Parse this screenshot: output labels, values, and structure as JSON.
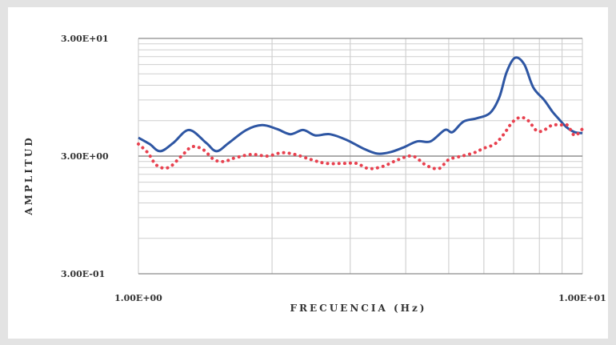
{
  "chart_data": {
    "type": "line",
    "title": "",
    "xlabel": "FRECUENCIA (Hz)",
    "ylabel": "AMPLITUD",
    "x_scale": "log",
    "y_scale": "log",
    "xlim": [
      1,
      10
    ],
    "ylim": [
      0.3,
      30
    ],
    "x_tick_labels": [
      {
        "value": 1,
        "label": "1.00E+00"
      },
      {
        "value": 10,
        "label": "1.00E+01"
      }
    ],
    "y_tick_labels": [
      {
        "value": 30,
        "label": "3.00E+01"
      },
      {
        "value": 3,
        "label": "3.00E+00"
      },
      {
        "value": 0.3,
        "label": "3.00E-01"
      }
    ],
    "grid": true,
    "legend": false,
    "series": [
      {
        "color": "#2e56a3",
        "style": "solid",
        "points": [
          [
            1.0,
            4.3
          ],
          [
            1.06,
            3.8
          ],
          [
            1.12,
            3.3
          ],
          [
            1.2,
            3.9
          ],
          [
            1.3,
            5.0
          ],
          [
            1.42,
            3.9
          ],
          [
            1.5,
            3.3
          ],
          [
            1.6,
            3.9
          ],
          [
            1.75,
            5.0
          ],
          [
            1.9,
            5.5
          ],
          [
            2.05,
            5.1
          ],
          [
            2.2,
            4.6
          ],
          [
            2.35,
            5.0
          ],
          [
            2.5,
            4.5
          ],
          [
            2.7,
            4.6
          ],
          [
            2.95,
            4.1
          ],
          [
            3.2,
            3.5
          ],
          [
            3.45,
            3.15
          ],
          [
            3.7,
            3.25
          ],
          [
            3.95,
            3.55
          ],
          [
            4.25,
            4.0
          ],
          [
            4.55,
            4.0
          ],
          [
            4.9,
            5.0
          ],
          [
            5.1,
            4.8
          ],
          [
            5.4,
            5.9
          ],
          [
            5.8,
            6.3
          ],
          [
            6.2,
            7.0
          ],
          [
            6.5,
            9.5
          ],
          [
            6.75,
            15.5
          ],
          [
            7.05,
            20.5
          ],
          [
            7.4,
            18.0
          ],
          [
            7.75,
            11.5
          ],
          [
            8.2,
            9.0
          ],
          [
            8.55,
            7.2
          ],
          [
            8.85,
            6.2
          ],
          [
            9.2,
            5.3
          ],
          [
            9.6,
            4.8
          ],
          [
            10.0,
            4.7
          ]
        ]
      },
      {
        "color": "#e8414f",
        "style": "dotted",
        "points": [
          [
            1.0,
            3.8
          ],
          [
            1.05,
            3.2
          ],
          [
            1.1,
            2.5
          ],
          [
            1.17,
            2.4
          ],
          [
            1.25,
            3.0
          ],
          [
            1.32,
            3.6
          ],
          [
            1.4,
            3.4
          ],
          [
            1.48,
            2.8
          ],
          [
            1.56,
            2.7
          ],
          [
            1.65,
            2.9
          ],
          [
            1.8,
            3.1
          ],
          [
            1.95,
            3.0
          ],
          [
            2.1,
            3.2
          ],
          [
            2.25,
            3.1
          ],
          [
            2.45,
            2.8
          ],
          [
            2.65,
            2.6
          ],
          [
            2.9,
            2.6
          ],
          [
            3.1,
            2.6
          ],
          [
            3.3,
            2.35
          ],
          [
            3.55,
            2.45
          ],
          [
            3.85,
            2.8
          ],
          [
            4.15,
            3.0
          ],
          [
            4.45,
            2.5
          ],
          [
            4.75,
            2.35
          ],
          [
            5.0,
            2.8
          ],
          [
            5.35,
            3.0
          ],
          [
            5.7,
            3.2
          ],
          [
            6.0,
            3.5
          ],
          [
            6.35,
            3.8
          ],
          [
            6.65,
            4.6
          ],
          [
            6.95,
            5.8
          ],
          [
            7.25,
            6.4
          ],
          [
            7.55,
            6.0
          ],
          [
            7.9,
            4.9
          ],
          [
            8.2,
            5.0
          ],
          [
            8.55,
            5.5
          ],
          [
            8.9,
            5.5
          ],
          [
            9.25,
            5.5
          ],
          [
            9.6,
            4.5
          ],
          [
            10.0,
            5.1
          ]
        ]
      }
    ]
  }
}
